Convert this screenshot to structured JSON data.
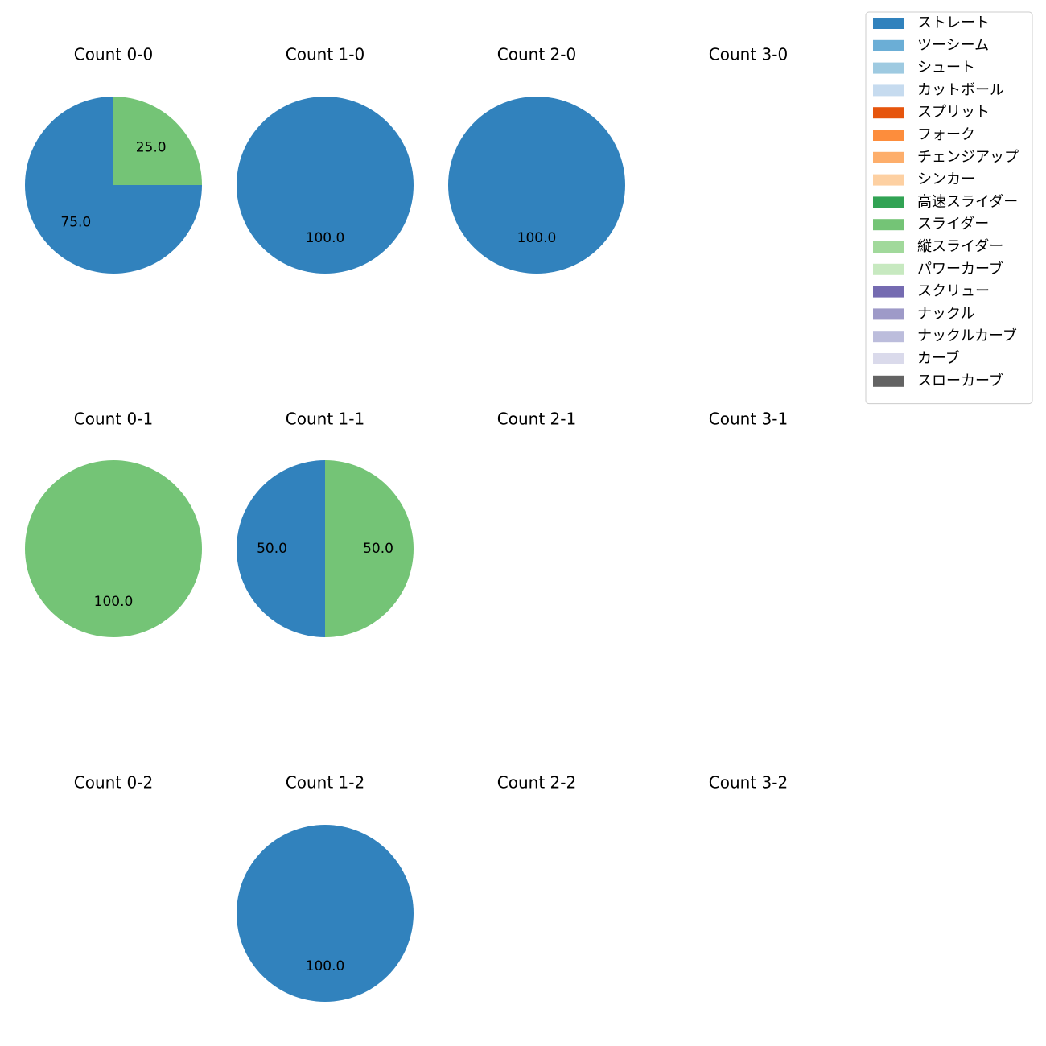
{
  "chart_data": {
    "type": "pie",
    "legend": {
      "placement": "top-right",
      "entries": [
        {
          "name": "ストレート",
          "color": "#3182bd"
        },
        {
          "name": "ツーシーム",
          "color": "#6baed6"
        },
        {
          "name": "シュート",
          "color": "#9ecae1"
        },
        {
          "name": "カットボール",
          "color": "#c6dbef"
        },
        {
          "name": "スプリット",
          "color": "#e6550d"
        },
        {
          "name": "フォーク",
          "color": "#fd8d3c"
        },
        {
          "name": "チェンジアップ",
          "color": "#fdae6b"
        },
        {
          "name": "シンカー",
          "color": "#fdd0a2"
        },
        {
          "name": "高速スライダー",
          "color": "#31a354"
        },
        {
          "name": "スライダー",
          "color": "#74c476"
        },
        {
          "name": "縦スライダー",
          "color": "#a1d99b"
        },
        {
          "name": "パワーカーブ",
          "color": "#c7e9c0"
        },
        {
          "name": "スクリュー",
          "color": "#756bb1"
        },
        {
          "name": "ナックル",
          "color": "#9e9ac8"
        },
        {
          "name": "ナックルカーブ",
          "color": "#bcbddc"
        },
        {
          "name": "カーブ",
          "color": "#dadaeb"
        },
        {
          "name": "スローカーブ",
          "color": "#636363"
        }
      ]
    },
    "charts": [
      {
        "title": "Count 0-0",
        "slices": [
          {
            "pitch": "ストレート",
            "value": 75.0,
            "label": "75.0"
          },
          {
            "pitch": "スライダー",
            "value": 25.0,
            "label": "25.0"
          }
        ]
      },
      {
        "title": "Count 1-0",
        "slices": [
          {
            "pitch": "ストレート",
            "value": 100.0,
            "label": "100.0"
          }
        ]
      },
      {
        "title": "Count 2-0",
        "slices": [
          {
            "pitch": "ストレート",
            "value": 100.0,
            "label": "100.0"
          }
        ]
      },
      {
        "title": "Count 3-0",
        "slices": []
      },
      {
        "title": "Count 0-1",
        "slices": [
          {
            "pitch": "スライダー",
            "value": 100.0,
            "label": "100.0"
          }
        ]
      },
      {
        "title": "Count 1-1",
        "slices": [
          {
            "pitch": "ストレート",
            "value": 50.0,
            "label": "50.0"
          },
          {
            "pitch": "スライダー",
            "value": 50.0,
            "label": "50.0"
          }
        ]
      },
      {
        "title": "Count 2-1",
        "slices": []
      },
      {
        "title": "Count 3-1",
        "slices": []
      },
      {
        "title": "Count 0-2",
        "slices": []
      },
      {
        "title": "Count 1-2",
        "slices": [
          {
            "pitch": "ストレート",
            "value": 100.0,
            "label": "100.0"
          }
        ]
      },
      {
        "title": "Count 2-2",
        "slices": []
      },
      {
        "title": "Count 3-2",
        "slices": []
      }
    ]
  }
}
